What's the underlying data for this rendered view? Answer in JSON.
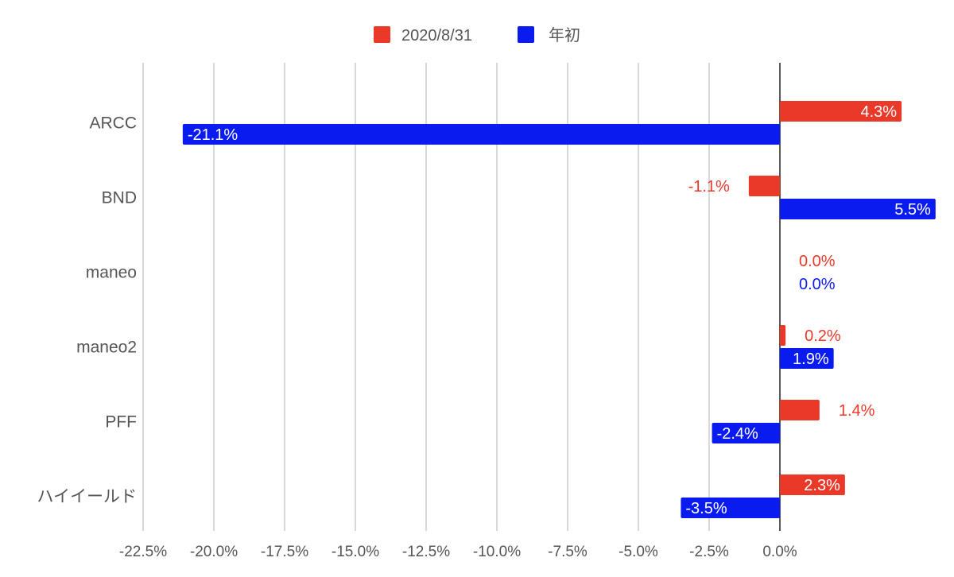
{
  "chart_data": {
    "type": "bar",
    "orientation": "horizontal",
    "categories": [
      "ARCC",
      "BND",
      "maneo",
      "maneo2",
      "PFF",
      "ハイイールド"
    ],
    "series": [
      {
        "name": "2020/8/31",
        "color": "#EA3829",
        "values": [
          4.3,
          -1.1,
          0.0,
          0.2,
          1.4,
          2.3
        ],
        "labels": [
          "4.3%",
          "-1.1%",
          "0.0%",
          "0.2%",
          "1.4%",
          "2.3%"
        ]
      },
      {
        "name": "年初",
        "color": "#0A1BF0",
        "values": [
          -21.1,
          5.5,
          0.0,
          1.9,
          -2.4,
          -3.5
        ],
        "labels": [
          "-21.1%",
          "5.5%",
          "0.0%",
          "1.9%",
          "-2.4%",
          "-3.5%"
        ]
      }
    ],
    "xlim": [
      -22.5,
      5.5
    ],
    "xticks": [
      -22.5,
      -20.0,
      -17.5,
      -15.0,
      -12.5,
      -10.0,
      -7.5,
      -5.0,
      -2.5,
      0.0
    ],
    "xtick_labels": [
      "-22.5%",
      "-20.0%",
      "-17.5%",
      "-15.0%",
      "-12.5%",
      "-10.0%",
      "-7.5%",
      "-5.0%",
      "-2.5%",
      "0.0%"
    ],
    "grid": true,
    "legend_position": "top-center"
  }
}
